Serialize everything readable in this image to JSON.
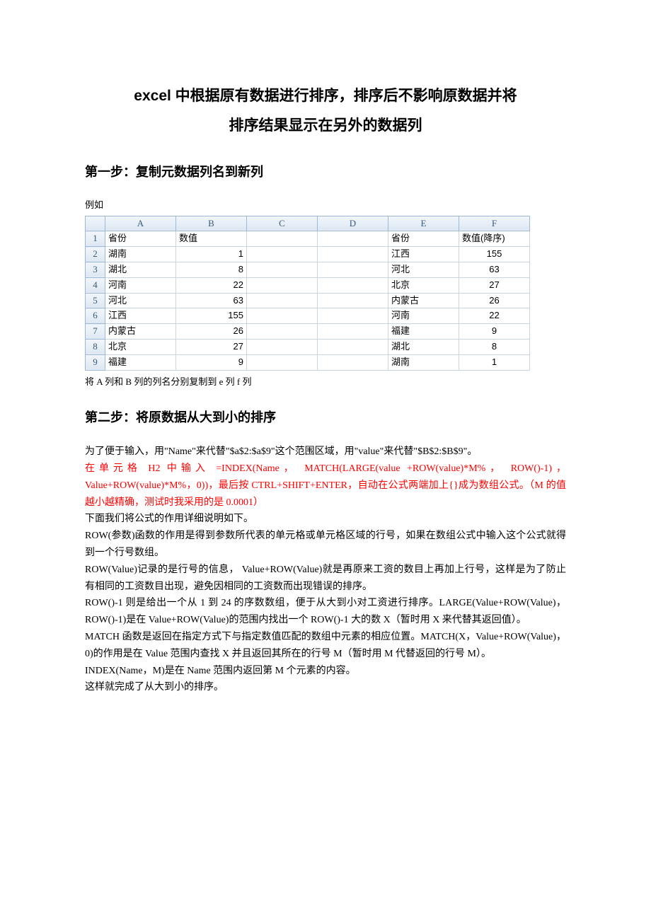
{
  "title_line1": "excel 中根据原有数据进行排序，排序后不影响原数据并将",
  "title_line2": "排序结果显示在另外的数据列",
  "step1_heading": "第一步：复制元数据列名到新列",
  "example_label": "例如",
  "table": {
    "col_headers": [
      "A",
      "B",
      "C",
      "D",
      "E",
      "F"
    ],
    "row_numbers": [
      "1",
      "2",
      "3",
      "4",
      "5",
      "6",
      "7",
      "8",
      "9"
    ],
    "rows": [
      [
        "省份",
        "数值",
        "",
        "",
        "省份",
        "数值(降序)"
      ],
      [
        "湖南",
        "1",
        "",
        "",
        "江西",
        "155"
      ],
      [
        "湖北",
        "8",
        "",
        "",
        "河北",
        "63"
      ],
      [
        "河南",
        "22",
        "",
        "",
        "北京",
        "27"
      ],
      [
        "河北",
        "63",
        "",
        "",
        "内蒙古",
        "26"
      ],
      [
        "江西",
        "155",
        "",
        "",
        "河南",
        "22"
      ],
      [
        "内蒙古",
        "26",
        "",
        "",
        "福建",
        "9"
      ],
      [
        "北京",
        "27",
        "",
        "",
        "湖北",
        "8"
      ],
      [
        "福建",
        "9",
        "",
        "",
        "湖南",
        "1"
      ]
    ],
    "aligns": [
      [
        "al",
        "al",
        "al",
        "al",
        "al",
        "al"
      ],
      [
        "al",
        "ar",
        "al",
        "al",
        "al",
        "ac"
      ],
      [
        "al",
        "ar",
        "al",
        "al",
        "al",
        "ac"
      ],
      [
        "al",
        "ar",
        "al",
        "al",
        "al",
        "ac"
      ],
      [
        "al",
        "ar",
        "al",
        "al",
        "al",
        "ac"
      ],
      [
        "al",
        "ar",
        "al",
        "al",
        "al",
        "ac"
      ],
      [
        "al",
        "ar",
        "al",
        "al",
        "al",
        "ac"
      ],
      [
        "al",
        "ar",
        "al",
        "al",
        "al",
        "ac"
      ],
      [
        "al",
        "ar",
        "al",
        "al",
        "al",
        "ac"
      ]
    ]
  },
  "caption_under_table": "将 A 列和 B 列的列名分别复制到 e 列 f 列",
  "step2_heading": "第二步：将原数据从大到小的排序",
  "p_intro": "为了便于输入，用\"Name\"来代替\"$a$2:$a$9\"这个范围区域，用\"value\"来代替\"$B$2:$B$9\"。",
  "p_red1": "在单元格 H2 中输入 =INDEX(Name， MATCH(LARGE(value +ROW(value)*M%， ROW()-1)，Value+ROW(value)*M%，0))，最后按 CTRL+SHIFT+ENTER，自动在公式两端加上{}成为数组公式。（M 的值越小越精确，测试时我采用的是 0.0001）",
  "p_after_red": "下面我们将公式的作用详细说明如下。",
  "p_row1": "ROW(参数)函数的作用是得到参数所代表的单元格或单元格区域的行号，如果在数组公式中输入这个公式就得到一个行号数组。",
  "p_row2": "ROW(Value)记录的是行号的信息，  Value+ROW(Value)就是再原来工资的数目上再加上行号，这样是为了防止有相同的工资数目出现，避免因相同的工资数而出现错误的排序。",
  "p_row3": "ROW()-1 则是给出一个从 1 到 24 的序数数组，便于从大到小对工资进行排序。LARGE(Value+ROW(Value)，ROW()-1)是在 Value+ROW(Value)的范围内找出一个 ROW()-1 大的数 X（暂时用 X 来代替其返回值）。",
  "p_match": "MATCH 函数是返回在指定方式下与指定数值匹配的数组中元素的相应位置。MATCH(X，Value+ROW(Value)，0)的作用是在 Value 范围内查找 X 并且返回其所在的行号 M（暂时用 M 代替返回的行号 M）。",
  "p_index": "INDEX(Name，M)是在 Name 范围内返回第 M 个元素的内容。",
  "p_done": "这样就完成了从大到小的排序。",
  "colors": {
    "text": "#000000",
    "red_text": "#ff0000",
    "header_bg_top": "#f2f6fb",
    "header_bg_bottom": "#dde7f2",
    "header_border": "#9db8d6",
    "cell_border": "#c8d4e0",
    "header_text": "#3a5a7a"
  }
}
